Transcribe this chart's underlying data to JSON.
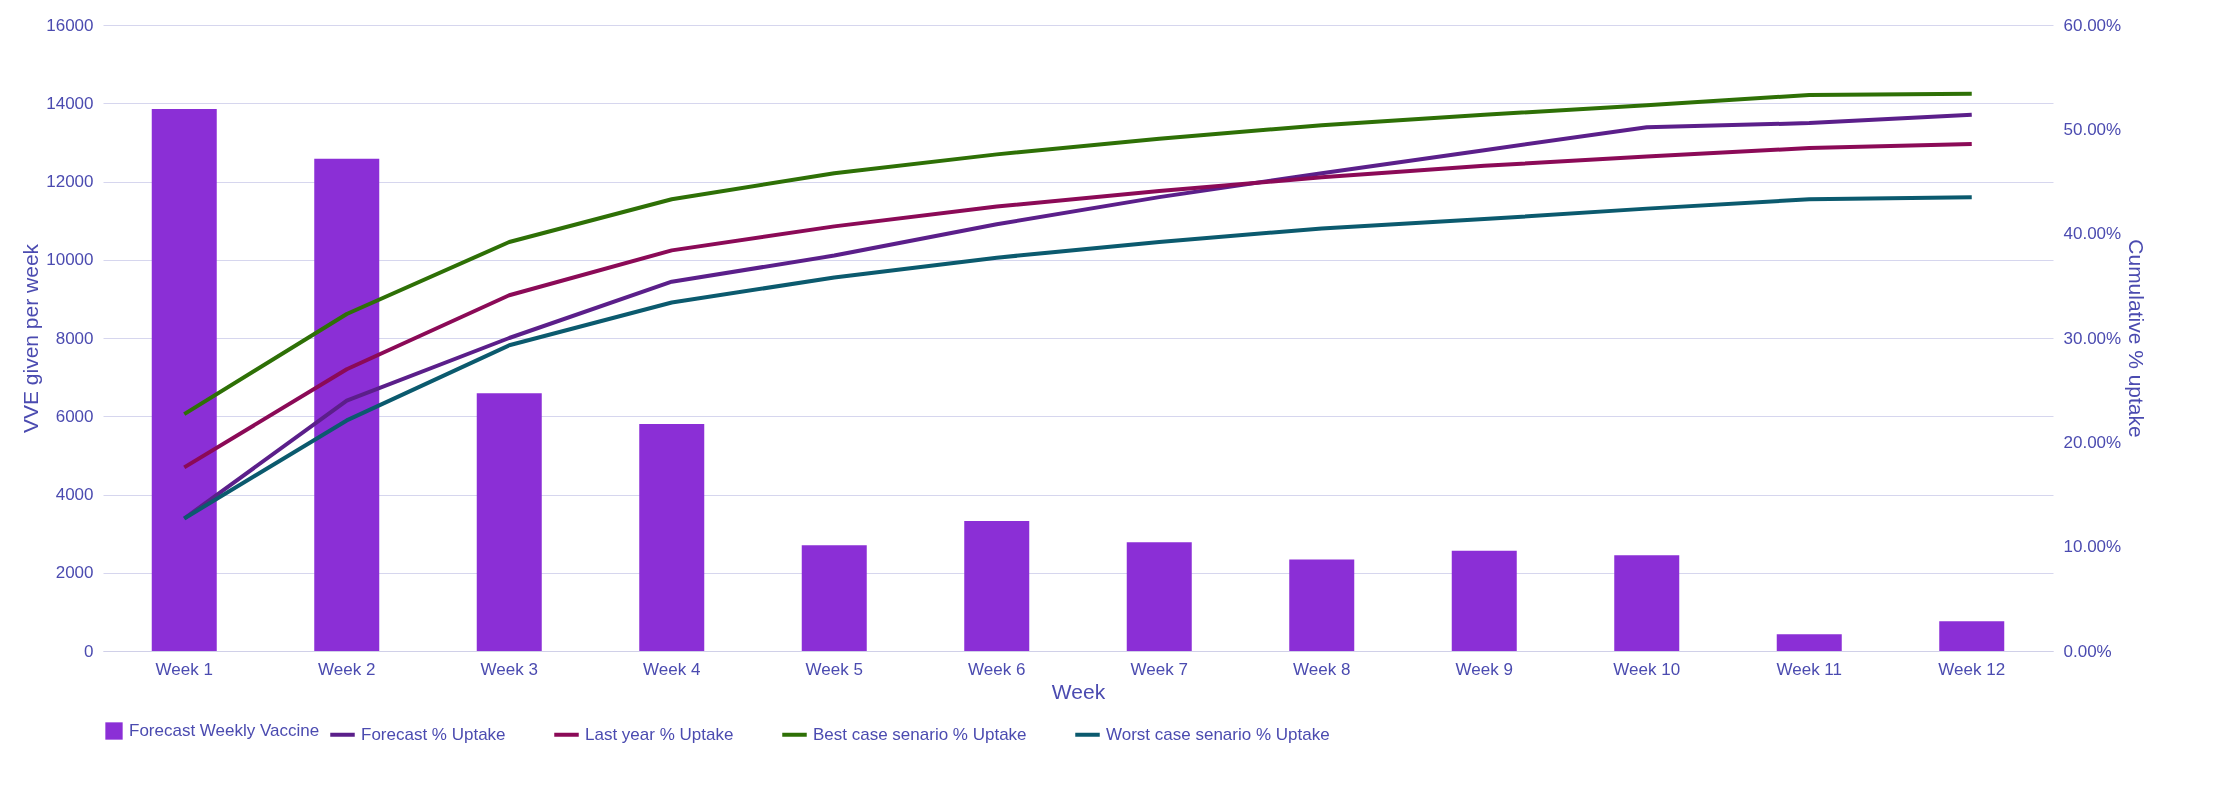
{
  "chart_data": {
    "type": "bar",
    "xlabel": "Week",
    "ylabel": "VVE given per week",
    "y2label": "Cumulative % uptake",
    "categories": [
      "Week 1",
      "Week 2",
      "Week 3",
      "Week 4",
      "Week 5",
      "Week 6",
      "Week 7",
      "Week 8",
      "Week 9",
      "Week 10",
      "Week 11",
      "Week 12"
    ],
    "series": [
      {
        "name": "Forecast Weekly Vaccine",
        "color": "#8b2fd6",
        "values": [
          13850,
          12580,
          6590,
          5800,
          2700,
          3320,
          2780,
          2340,
          2560,
          2450,
          430,
          760
        ]
      },
      {
        "name": "Forecast % Uptake",
        "type": "line",
        "axis": "y2",
        "color": "#5b1f8a",
        "values": [
          12.7,
          24.0,
          30.0,
          35.4,
          37.9,
          40.9,
          43.5,
          45.8,
          48.0,
          50.2,
          50.6,
          51.4
        ]
      },
      {
        "name": "Last year % Uptake",
        "type": "line",
        "axis": "y2",
        "color": "#8b0a57",
        "values": [
          17.6,
          27.0,
          34.1,
          38.4,
          40.7,
          42.6,
          44.1,
          45.4,
          46.5,
          47.4,
          48.2,
          48.6
        ]
      },
      {
        "name": "Best case senario % Uptake",
        "type": "line",
        "axis": "y2",
        "color": "#2e7006",
        "values": [
          22.7,
          32.3,
          39.2,
          43.3,
          45.8,
          47.6,
          49.1,
          50.4,
          51.4,
          52.3,
          53.3,
          53.4
        ]
      },
      {
        "name": "Worst case senario % Uptake",
        "type": "line",
        "axis": "y2",
        "color": "#0b5a6e",
        "values": [
          12.7,
          22.1,
          29.3,
          33.4,
          35.8,
          37.7,
          39.2,
          40.5,
          41.4,
          42.4,
          43.3,
          43.5
        ]
      }
    ],
    "ylim": [
      0,
      16000
    ],
    "yticks": [
      0,
      2000,
      4000,
      6000,
      8000,
      10000,
      12000,
      14000,
      16000
    ],
    "y2lim": [
      0,
      60
    ],
    "y2ticks": [
      {
        "value": 0,
        "label": "0.00%"
      },
      {
        "value": 10,
        "label": "10.00%"
      },
      {
        "value": 20,
        "label": "20.00%"
      },
      {
        "value": 30,
        "label": "30.00%"
      },
      {
        "value": 40,
        "label": "40.00%"
      },
      {
        "value": 50,
        "label": "50.00%"
      },
      {
        "value": 60,
        "label": "60.00%"
      }
    ],
    "grid": "y",
    "legend": "bottom",
    "line_style": "solid",
    "marker": "none"
  }
}
